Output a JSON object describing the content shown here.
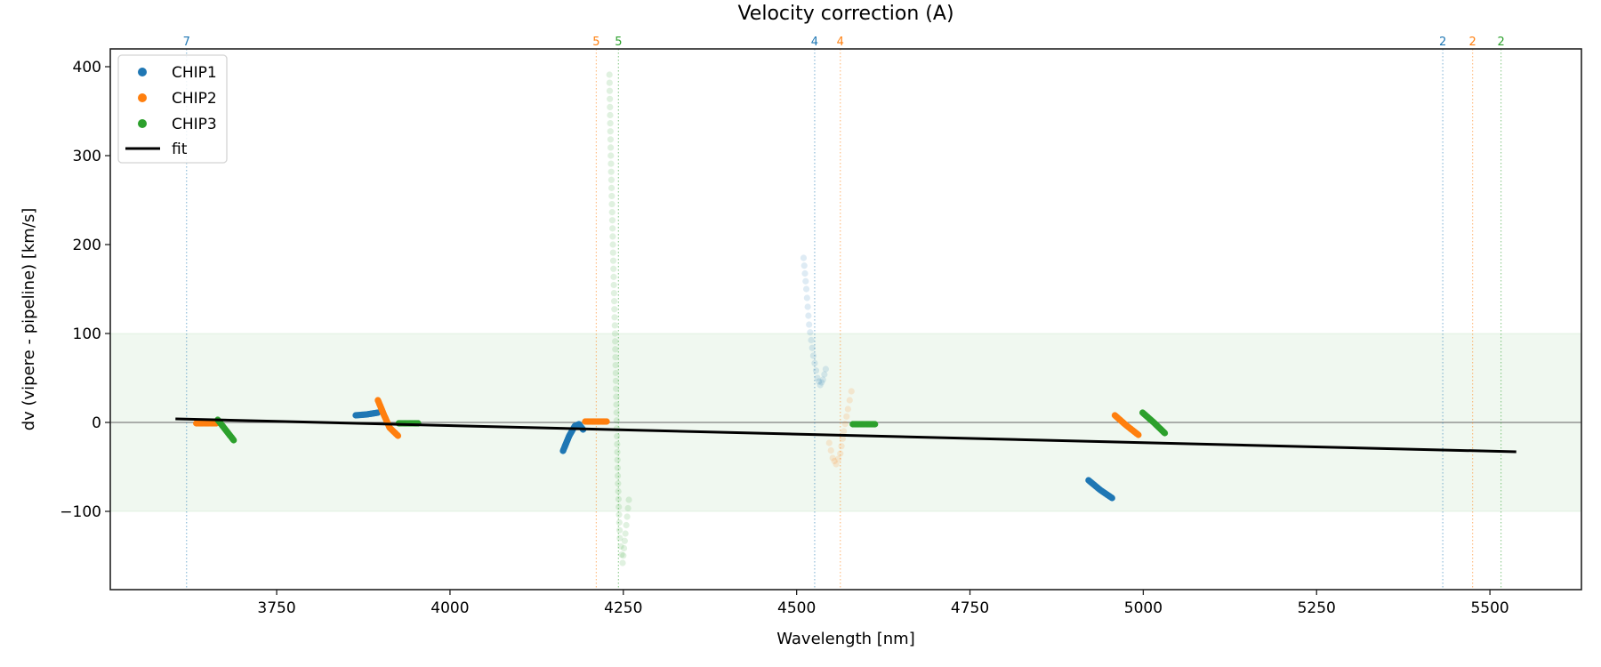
{
  "chart_data": {
    "type": "scatter",
    "title": "Velocity correction (A)",
    "xlabel": "Wavelength [nm]",
    "ylabel": "dv (vipere - pipeline) [km/s]",
    "xlim": [
      3510,
      5632
    ],
    "ylim": [
      -188,
      420
    ],
    "xticks": [
      3750,
      4000,
      4250,
      4500,
      4750,
      5000,
      5250,
      5500
    ],
    "yticks": [
      -100,
      0,
      100,
      200,
      300,
      400
    ],
    "xtick_labels": [
      "3750",
      "4000",
      "4250",
      "4500",
      "4750",
      "5000",
      "5250",
      "5500"
    ],
    "ytick_labels": [
      "−100",
      "0",
      "100",
      "200",
      "300",
      "400"
    ],
    "grid": false,
    "legend_position": "top-left",
    "legend": [
      {
        "label": "CHIP1",
        "kind": "marker",
        "color": "#1f77b4"
      },
      {
        "label": "CHIP2",
        "kind": "marker",
        "color": "#ff7f0e"
      },
      {
        "label": "CHIP3",
        "kind": "marker",
        "color": "#2ca02c"
      },
      {
        "label": "fit",
        "kind": "line",
        "color": "#000000"
      }
    ],
    "band": {
      "y0": -100,
      "y1": 100,
      "color": "#2ca02c"
    },
    "zero_line": {
      "y": 0,
      "color": "#808080"
    },
    "fit": {
      "name": "fit",
      "color": "#000000",
      "x": [
        3604,
        5538
      ],
      "y": [
        4,
        -33
      ]
    },
    "order_markers": [
      {
        "x": 3620,
        "label": "7",
        "color": "#1f77b4"
      },
      {
        "x": 4211,
        "label": "5",
        "color": "#ff7f0e"
      },
      {
        "x": 4243,
        "label": "5",
        "color": "#2ca02c"
      },
      {
        "x": 4526,
        "label": "4",
        "color": "#1f77b4"
      },
      {
        "x": 4563,
        "label": "4",
        "color": "#ff7f0e"
      },
      {
        "x": 5432,
        "label": "2",
        "color": "#1f77b4"
      },
      {
        "x": 5475,
        "label": "2",
        "color": "#ff7f0e"
      },
      {
        "x": 5516,
        "label": "2",
        "color": "#2ca02c"
      }
    ],
    "series": [
      {
        "name": "CHIP1",
        "color": "#1f77b4",
        "segments": [
          {
            "order": 5,
            "faint": false,
            "points": [
              [
                4163,
                -32
              ],
              [
                4172,
                -15
              ],
              [
                4180,
                -4
              ],
              [
                4186,
                -2
              ],
              [
                4192,
                -8
              ]
            ]
          },
          {
            "order": 6,
            "faint": false,
            "points": [
              [
                3864,
                8
              ],
              [
                3880,
                9
              ],
              [
                3896,
                11
              ]
            ]
          },
          {
            "order": 4,
            "faint": true,
            "points": [
              [
                4510,
                185
              ],
              [
                4514,
                150
              ],
              [
                4518,
                110
              ],
              [
                4524,
                75
              ],
              [
                4530,
                50
              ],
              [
                4534,
                42
              ],
              [
                4538,
                48
              ],
              [
                4542,
                60
              ]
            ]
          },
          {
            "order": 3,
            "faint": false,
            "points": [
              [
                4921,
                -65
              ],
              [
                4938,
                -76
              ],
              [
                4955,
                -85
              ]
            ]
          }
        ]
      },
      {
        "name": "CHIP2",
        "color": "#ff7f0e",
        "segments": [
          {
            "order": 7,
            "faint": false,
            "points": [
              [
                3634,
                -1
              ],
              [
                3663,
                -1
              ]
            ]
          },
          {
            "order": 6,
            "faint": false,
            "points": [
              [
                3896,
                25
              ],
              [
                3905,
                8
              ],
              [
                3913,
                -6
              ],
              [
                3925,
                -15
              ]
            ]
          },
          {
            "order": 5,
            "faint": false,
            "points": [
              [
                4195,
                1
              ],
              [
                4226,
                1
              ]
            ]
          },
          {
            "order": 4,
            "faint": true,
            "points": [
              [
                4547,
                -23
              ],
              [
                4552,
                -40
              ],
              [
                4557,
                -47
              ],
              [
                4563,
                -35
              ],
              [
                4568,
                -10
              ],
              [
                4574,
                15
              ],
              [
                4579,
                35
              ]
            ]
          },
          {
            "order": 3,
            "faint": false,
            "points": [
              [
                4959,
                8
              ],
              [
                4975,
                -3
              ],
              [
                4993,
                -14
              ]
            ]
          }
        ]
      },
      {
        "name": "CHIP3",
        "color": "#2ca02c",
        "segments": [
          {
            "order": 7,
            "faint": false,
            "points": [
              [
                3665,
                3
              ],
              [
                3676,
                -8
              ],
              [
                3688,
                -20
              ]
            ]
          },
          {
            "order": 6,
            "faint": false,
            "points": [
              [
                3926,
                -1
              ],
              [
                3954,
                -1
              ]
            ]
          },
          {
            "order": 5,
            "faint": true,
            "points": [
              [
                4230,
                391
              ],
              [
                4232,
                300
              ],
              [
                4235,
                200
              ],
              [
                4238,
                100
              ],
              [
                4240,
                20
              ],
              [
                4242,
                -60
              ],
              [
                4245,
                -130
              ],
              [
                4249,
                -158
              ],
              [
                4253,
                -125
              ],
              [
                4258,
                -87
              ]
            ]
          },
          {
            "order": 4,
            "faint": false,
            "points": [
              [
                4581,
                -2
              ],
              [
                4613,
                -2
              ]
            ]
          },
          {
            "order": 3,
            "faint": false,
            "points": [
              [
                4999,
                11
              ],
              [
                5015,
                0
              ],
              [
                5031,
                -12
              ]
            ]
          }
        ]
      }
    ]
  }
}
